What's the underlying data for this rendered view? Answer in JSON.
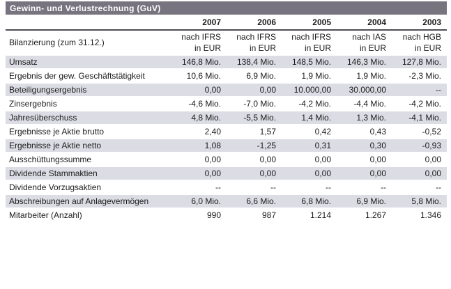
{
  "title_bar": {
    "label": "Gewinn- und Verlustrechnung (GuV)"
  },
  "colors": {
    "title_bar_bg": "#77737f",
    "title_text": "#ffffff",
    "row_alt_bg": "#dcdce5",
    "header_rule": "#4c4c54"
  },
  "table": {
    "year_headers": [
      "2007",
      "2006",
      "2005",
      "2004",
      "2003"
    ],
    "rows": [
      {
        "label": "Bilanzierung (zum 31.12.)",
        "values": [
          "nach IFRS",
          "nach IFRS",
          "nach IFRS",
          "nach IAS",
          "nach HGB"
        ],
        "currency": [
          "in EUR",
          "in EUR",
          "in EUR",
          "in EUR",
          "in EUR"
        ]
      },
      {
        "label": "Umsatz",
        "values": [
          "146,8 Mio.",
          "138,4 Mio.",
          "148,5 Mio.",
          "146,3 Mio.",
          "127,8 Mio."
        ]
      },
      {
        "label": "Ergebnis der gew. Geschäftstätigkeit",
        "values": [
          "10,6 Mio.",
          "6,9 Mio.",
          "1,9 Mio.",
          "1,9 Mio.",
          "-2,3 Mio."
        ]
      },
      {
        "label": "Beteiligungsergebnis",
        "values": [
          "0,00",
          "0,00",
          "10.000,00",
          "30.000,00",
          "--"
        ]
      },
      {
        "label": "Zinsergebnis",
        "values": [
          "-4,6 Mio.",
          "-7,0 Mio.",
          "-4,2 Mio.",
          "-4,4 Mio.",
          "-4,2 Mio."
        ]
      },
      {
        "label": "Jahresüberschuss",
        "values": [
          "4,8 Mio.",
          "-5,5 Mio.",
          "1,4 Mio.",
          "1,3 Mio.",
          "-4,1 Mio."
        ]
      },
      {
        "label": "Ergebnisse je Aktie brutto",
        "values": [
          "2,40",
          "1,57",
          "0,42",
          "0,43",
          "-0,52"
        ]
      },
      {
        "label": "Ergebnisse je Aktie netto",
        "values": [
          "1,08",
          "-1,25",
          "0,31",
          "0,30",
          "-0,93"
        ]
      },
      {
        "label": "Ausschüttungssumme",
        "values": [
          "0,00",
          "0,00",
          "0,00",
          "0,00",
          "0,00"
        ]
      },
      {
        "label": "Dividende Stammaktien",
        "values": [
          "0,00",
          "0,00",
          "0,00",
          "0,00",
          "0,00"
        ]
      },
      {
        "label": "Dividende Vorzugsaktien",
        "values": [
          "--",
          "--",
          "--",
          "--",
          "--"
        ]
      },
      {
        "label": "Abschreibungen auf Anlagevermögen",
        "values": [
          "6,0 Mio.",
          "6,6 Mio.",
          "6,8 Mio.",
          "6,9 Mio.",
          "5,8 Mio."
        ]
      },
      {
        "label": "Mitarbeiter (Anzahl)",
        "values": [
          "990",
          "987",
          "1.214",
          "1.267",
          "1.346"
        ]
      }
    ]
  }
}
